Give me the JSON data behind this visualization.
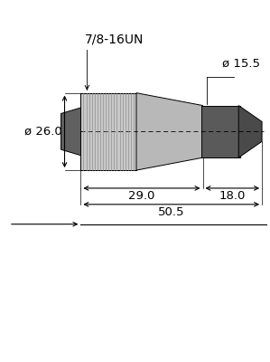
{
  "bg_color": "#ffffff",
  "colors": {
    "knurl_fill": "#c8c8c8",
    "knurl_line": "#909090",
    "cone_fill": "#b8b8b8",
    "nut_fill": "#606060",
    "cable_fill": "#5a5a5a",
    "tip_fill": "#4a4a4a",
    "dim_line": "#000000",
    "center_dash": "#000000"
  },
  "labels": {
    "thread": "7/8-16UN",
    "dia_large": "ø 26.0",
    "dia_small": "ø 15.5",
    "dim_29": "29.0",
    "dim_18": "18.0",
    "dim_50": "50.5"
  },
  "font_size": 9.5,
  "line_color": "#000000"
}
